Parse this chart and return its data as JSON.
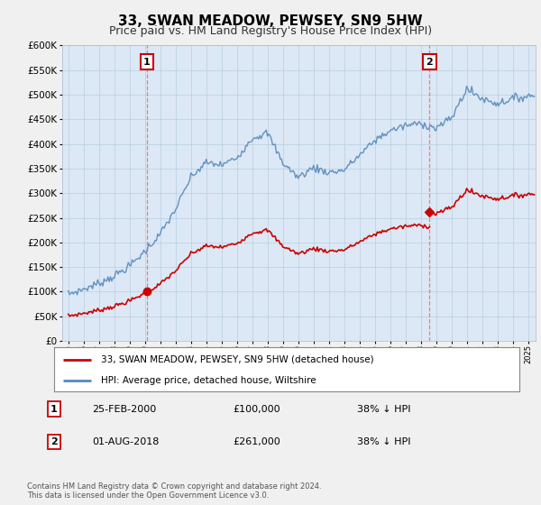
{
  "title": "33, SWAN MEADOW, PEWSEY, SN9 5HW",
  "subtitle": "Price paid vs. HM Land Registry's House Price Index (HPI)",
  "legend_label_red": "33, SWAN MEADOW, PEWSEY, SN9 5HW (detached house)",
  "legend_label_blue": "HPI: Average price, detached house, Wiltshire",
  "annotation1_label": "1",
  "annotation1_date": "25-FEB-2000",
  "annotation1_value": "£100,000",
  "annotation1_note": "38% ↓ HPI",
  "annotation2_label": "2",
  "annotation2_date": "01-AUG-2018",
  "annotation2_value": "£261,000",
  "annotation2_note": "38% ↓ HPI",
  "footer": "Contains HM Land Registry data © Crown copyright and database right 2024.\nThis data is licensed under the Open Government Licence v3.0.",
  "ylim": [
    0,
    600000
  ],
  "yticks": [
    0,
    50000,
    100000,
    150000,
    200000,
    250000,
    300000,
    350000,
    400000,
    450000,
    500000,
    550000,
    600000
  ],
  "ytick_labels": [
    "£0",
    "£50K",
    "£100K",
    "£150K",
    "£200K",
    "£250K",
    "£300K",
    "£350K",
    "£400K",
    "£450K",
    "£500K",
    "£550K",
    "£600K"
  ],
  "red_color": "#cc0000",
  "blue_color": "#5588bb",
  "dashed_red": "#e87070",
  "background_color": "#f0f0f0",
  "plot_bg": "#dce8f5",
  "purchase1_x": 2000.13,
  "purchase1_y": 100000,
  "purchase2_x": 2018.58,
  "purchase2_y": 261000,
  "xmin": 1994.6,
  "xmax": 2025.5,
  "title_fontsize": 11,
  "subtitle_fontsize": 9
}
